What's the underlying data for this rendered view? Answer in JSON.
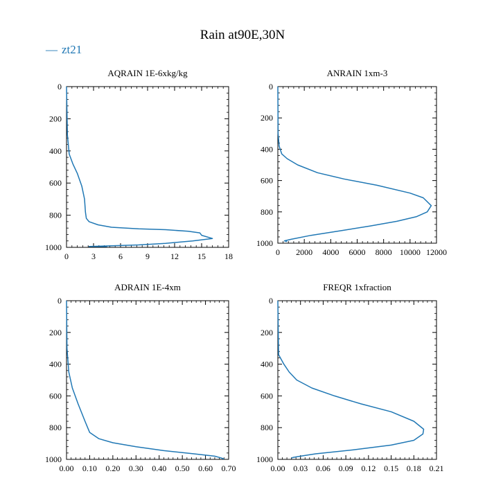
{
  "figure": {
    "title": "Rain at90E,30N",
    "legend": {
      "label": "zt21",
      "color": "#1f77b4",
      "marker": "—"
    }
  },
  "chart_data": [
    {
      "type": "line",
      "title": "AQRAIN  1E-6xkg/kg",
      "series_name": "zt21",
      "xlim": [
        0,
        18
      ],
      "ylim": [
        1000,
        0
      ],
      "xticks": [
        0,
        3,
        6,
        9,
        12,
        15,
        18
      ],
      "xtick_labels": [
        "0",
        "3",
        "6",
        "9",
        "12",
        "15",
        "18"
      ],
      "yticks": [
        0,
        200,
        400,
        600,
        800,
        1000
      ],
      "ytick_labels": [
        "0",
        "200",
        "400",
        "600",
        "800",
        "1000"
      ],
      "x": [
        0,
        0.1,
        0.3,
        0.7,
        1.2,
        1.7,
        2.0,
        2.1,
        2.2,
        2.5,
        3.5,
        5.0,
        8.0,
        11.0,
        13.5,
        14.8,
        15.0,
        16.2,
        14.0,
        11.0,
        8.0,
        5.0,
        2.5,
        4.5
      ],
      "y": [
        0,
        300,
        420,
        480,
        540,
        620,
        700,
        780,
        820,
        840,
        860,
        875,
        885,
        890,
        900,
        910,
        925,
        945,
        960,
        975,
        985,
        990,
        995,
        995
      ]
    },
    {
      "type": "line",
      "title": "ANRAIN  1xm-3",
      "series_name": "zt21",
      "xlim": [
        0,
        12000
      ],
      "ylim": [
        1000,
        0
      ],
      "xticks": [
        0,
        2000,
        4000,
        6000,
        8000,
        10000,
        12000
      ],
      "xtick_labels": [
        "0",
        "2000",
        "4000",
        "6000",
        "8000",
        "10000",
        "12000"
      ],
      "yticks": [
        0,
        200,
        400,
        600,
        800,
        1000
      ],
      "ytick_labels": [
        "0",
        "200",
        "400",
        "600",
        "800",
        "1000"
      ],
      "x": [
        0,
        20,
        100,
        300,
        700,
        1500,
        3000,
        5000,
        7500,
        10000,
        11000,
        11600,
        11300,
        10500,
        9000,
        7000,
        4800,
        2500,
        1000,
        500,
        700
      ],
      "y": [
        0,
        300,
        380,
        430,
        460,
        500,
        550,
        590,
        630,
        680,
        710,
        760,
        800,
        830,
        860,
        890,
        920,
        950,
        975,
        985,
        990
      ]
    },
    {
      "type": "line",
      "title": "ADRAIN  1E-4xm",
      "series_name": "zt21",
      "xlim": [
        0,
        0.7
      ],
      "ylim": [
        1000,
        0
      ],
      "xticks": [
        0,
        0.1,
        0.2,
        0.3,
        0.4,
        0.5,
        0.6,
        0.7
      ],
      "xtick_labels": [
        "0.00",
        "0.10",
        "0.20",
        "0.30",
        "0.40",
        "0.50",
        "0.60",
        "0.70"
      ],
      "yticks": [
        0,
        200,
        400,
        600,
        800,
        1000
      ],
      "ytick_labels": [
        "0",
        "200",
        "400",
        "600",
        "800",
        "1000"
      ],
      "x": [
        0,
        0.002,
        0.01,
        0.025,
        0.05,
        0.08,
        0.1,
        0.14,
        0.2,
        0.3,
        0.42,
        0.55,
        0.64,
        0.67,
        0.68
      ],
      "y": [
        0,
        300,
        450,
        550,
        650,
        760,
        830,
        870,
        895,
        920,
        945,
        965,
        980,
        992,
        998
      ]
    },
    {
      "type": "line",
      "title": "FREQR  1xfraction",
      "series_name": "zt21",
      "xlim": [
        0,
        0.21
      ],
      "ylim": [
        1000,
        0
      ],
      "xticks": [
        0,
        0.03,
        0.06,
        0.09,
        0.12,
        0.15,
        0.18,
        0.21
      ],
      "xtick_labels": [
        "0.00",
        "0.03",
        "0.06",
        "0.09",
        "0.12",
        "0.15",
        "0.18",
        "0.21"
      ],
      "yticks": [
        0,
        200,
        400,
        600,
        800,
        1000
      ],
      "ytick_labels": [
        "0",
        "200",
        "400",
        "600",
        "800",
        "1000"
      ],
      "x": [
        0,
        0.001,
        0.008,
        0.015,
        0.025,
        0.045,
        0.075,
        0.11,
        0.15,
        0.18,
        0.193,
        0.192,
        0.18,
        0.15,
        0.1,
        0.05,
        0.03,
        0.02,
        0.018
      ],
      "y": [
        0,
        340,
        400,
        450,
        500,
        550,
        600,
        650,
        700,
        760,
        810,
        840,
        880,
        910,
        940,
        965,
        980,
        988,
        992
      ]
    }
  ]
}
